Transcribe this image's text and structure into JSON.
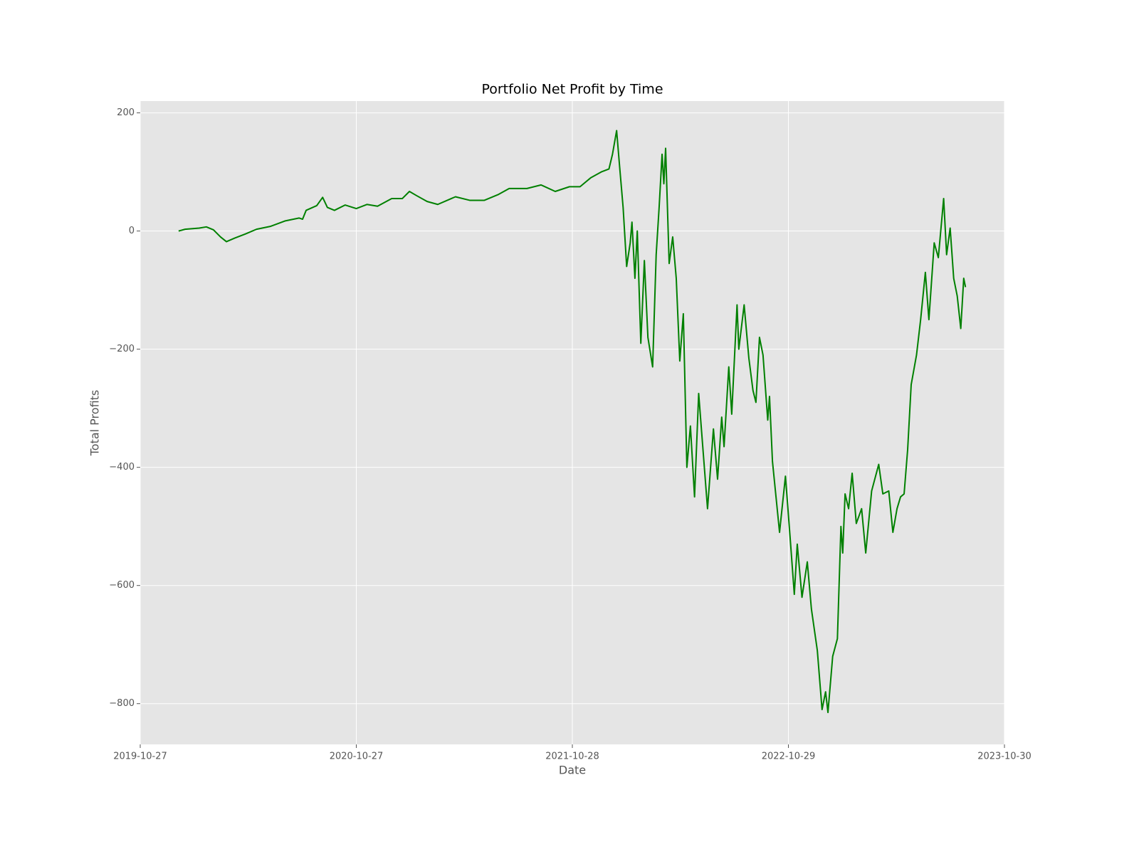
{
  "chart_data": {
    "type": "line",
    "title": "Portfolio Net Profit by Time",
    "x_label": "Date",
    "y_label": "Total Profits",
    "color": "#008000",
    "grid": true,
    "xlim": [
      "2019-10-27",
      "2023-10-30"
    ],
    "xticks": [
      "2019-10-27",
      "2020-10-27",
      "2021-10-28",
      "2022-10-29",
      "2023-10-30"
    ],
    "ylim": [
      -869,
      220
    ],
    "yticks": [
      {
        "value": -800,
        "label": "−800"
      },
      {
        "value": -600,
        "label": "−600"
      },
      {
        "value": -400,
        "label": "−400"
      },
      {
        "value": -200,
        "label": "−200"
      },
      0,
      200
    ],
    "x": [
      "2019-12-31",
      "2020-01-11",
      "2020-02-04",
      "2020-02-16",
      "2020-02-28",
      "2020-03-11",
      "2020-03-21",
      "2020-04-04",
      "2020-04-22",
      "2020-05-11",
      "2020-06-04",
      "2020-06-28",
      "2020-07-22",
      "2020-07-28",
      "2020-08-03",
      "2020-08-21",
      "2020-08-31",
      "2020-09-08",
      "2020-09-20",
      "2020-10-08",
      "2020-10-27",
      "2020-11-14",
      "2020-12-02",
      "2020-12-26",
      "2021-01-13",
      "2021-01-25",
      "2021-02-06",
      "2021-02-24",
      "2021-03-14",
      "2021-04-13",
      "2021-05-07",
      "2021-06-01",
      "2021-06-25",
      "2021-07-13",
      "2021-08-12",
      "2021-09-05",
      "2021-09-29",
      "2021-10-23",
      "2021-11-10",
      "2021-11-28",
      "2021-12-16",
      "2021-12-29",
      "2022-01-04",
      "2022-01-11",
      "2022-01-16",
      "2022-01-22",
      "2022-01-28",
      "2022-02-03",
      "2022-02-06",
      "2022-02-11",
      "2022-02-15",
      "2022-02-21",
      "2022-02-27",
      "2022-03-05",
      "2022-03-13",
      "2022-03-19",
      "2022-03-24",
      "2022-03-29",
      "2022-04-01",
      "2022-04-04",
      "2022-04-10",
      "2022-04-16",
      "2022-04-22",
      "2022-04-28",
      "2022-05-04",
      "2022-05-10",
      "2022-05-16",
      "2022-05-23",
      "2022-05-30",
      "2022-06-04",
      "2022-06-14",
      "2022-06-24",
      "2022-07-01",
      "2022-07-08",
      "2022-07-12",
      "2022-07-20",
      "2022-07-25",
      "2022-08-03",
      "2022-08-06",
      "2022-08-15",
      "2022-08-23",
      "2022-08-30",
      "2022-09-04",
      "2022-09-10",
      "2022-09-16",
      "2022-09-24",
      "2022-09-27",
      "2022-10-02",
      "2022-10-08",
      "2022-10-14",
      "2022-10-24",
      "2022-11-01",
      "2022-11-08",
      "2022-11-13",
      "2022-11-21",
      "2022-11-30",
      "2022-12-07",
      "2022-12-17",
      "2022-12-25",
      "2022-12-31",
      "2023-01-04",
      "2023-01-12",
      "2023-01-20",
      "2023-01-26",
      "2023-01-29",
      "2023-02-02",
      "2023-02-08",
      "2023-02-14",
      "2023-02-21",
      "2023-03-02",
      "2023-03-09",
      "2023-03-19",
      "2023-03-31",
      "2023-04-07",
      "2023-04-17",
      "2023-04-24",
      "2023-05-01",
      "2023-05-07",
      "2023-05-13",
      "2023-05-19",
      "2023-05-25",
      "2023-06-03",
      "2023-06-10",
      "2023-06-18",
      "2023-06-24",
      "2023-07-03",
      "2023-07-10",
      "2023-07-19",
      "2023-07-24",
      "2023-07-30",
      "2023-08-05",
      "2023-08-11",
      "2023-08-17",
      "2023-08-22",
      "2023-08-25"
    ],
    "values": [
      0,
      3,
      5,
      7,
      2,
      -10,
      -18,
      -12,
      -5,
      3,
      8,
      17,
      22,
      20,
      35,
      43,
      57,
      40,
      35,
      44,
      38,
      45,
      42,
      55,
      55,
      67,
      60,
      50,
      45,
      58,
      52,
      52,
      62,
      72,
      72,
      78,
      67,
      75,
      75,
      90,
      100,
      105,
      130,
      170,
      110,
      40,
      -60,
      -20,
      15,
      -80,
      0,
      -190,
      -50,
      -180,
      -230,
      -40,
      40,
      130,
      80,
      140,
      -55,
      -10,
      -80,
      -220,
      -140,
      -400,
      -330,
      -450,
      -275,
      -340,
      -470,
      -335,
      -420,
      -315,
      -365,
      -230,
      -310,
      -125,
      -200,
      -125,
      -215,
      -270,
      -290,
      -180,
      -210,
      -320,
      -280,
      -390,
      -450,
      -510,
      -415,
      -520,
      -615,
      -530,
      -620,
      -560,
      -640,
      -710,
      -810,
      -780,
      -815,
      -720,
      -690,
      -500,
      -545,
      -445,
      -470,
      -410,
      -495,
      -470,
      -545,
      -440,
      -395,
      -445,
      -440,
      -510,
      -470,
      -450,
      -445,
      -370,
      -260,
      -210,
      -150,
      -70,
      -150,
      -20,
      -45,
      55,
      -40,
      5,
      -80,
      -110,
      -165,
      -80,
      -95
    ]
  }
}
